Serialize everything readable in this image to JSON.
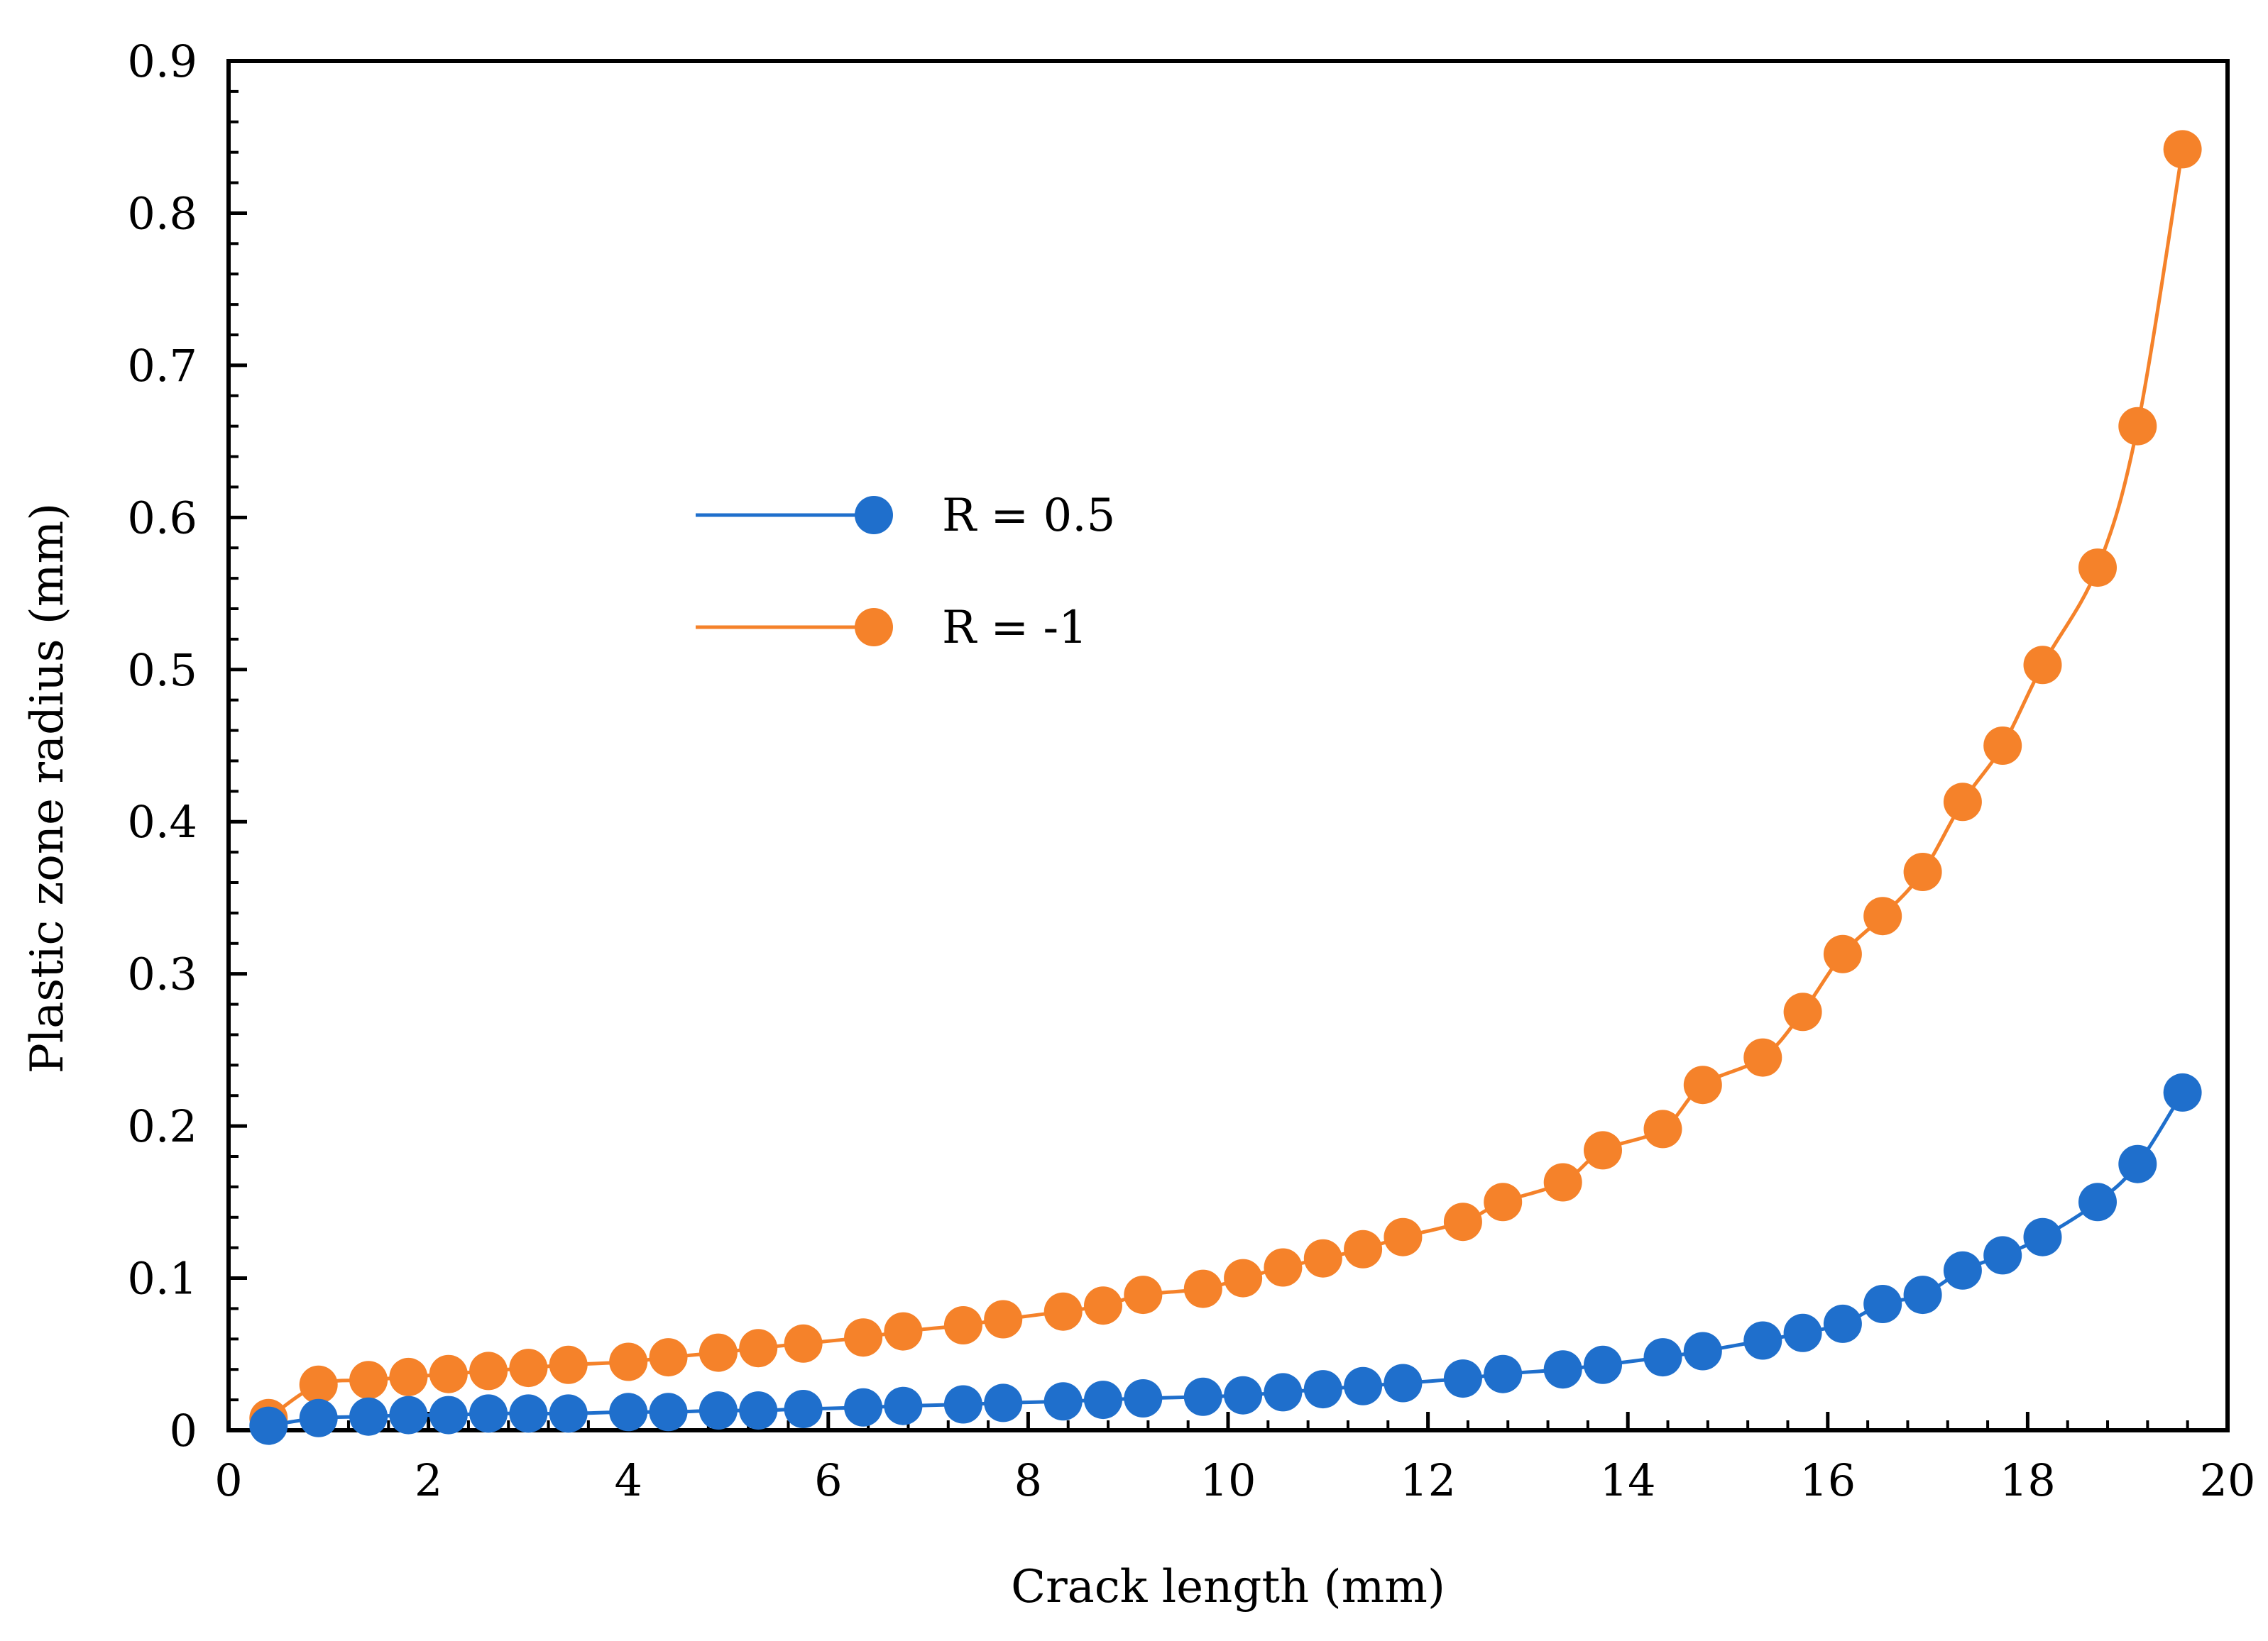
{
  "chart_data": {
    "type": "line",
    "title": "",
    "xlabel": "Crack length (mm)",
    "ylabel": "Plastic zone radius (mm)",
    "xlim": [
      0,
      20
    ],
    "ylim": [
      0,
      0.9
    ],
    "xticks": [
      0,
      2,
      4,
      6,
      8,
      10,
      12,
      14,
      16,
      18,
      20
    ],
    "yticks": [
      0,
      0.1,
      0.2,
      0.3,
      0.4,
      0.5,
      0.6,
      0.7,
      0.8,
      0.9
    ],
    "xtick_labels": [
      "0",
      "2",
      "4",
      "6",
      "8",
      "10",
      "12",
      "14",
      "16",
      "18",
      "20"
    ],
    "ytick_labels": [
      "0",
      "0.1",
      "0.2",
      "0.3",
      "0.4",
      "0.5",
      "0.6",
      "0.7",
      "0.8",
      "0.9"
    ],
    "grid": false,
    "legend": "center-left",
    "series": [
      {
        "name": "R = 0.5",
        "color": "#1f6fcc",
        "x": [
          0.4,
          0.9,
          1.4,
          1.8,
          2.2,
          2.6,
          3.0,
          3.4,
          4.0,
          4.4,
          4.9,
          5.3,
          5.75,
          6.35,
          6.75,
          7.35,
          7.75,
          8.35,
          8.75,
          9.15,
          9.75,
          10.15,
          10.55,
          10.95,
          11.35,
          11.75,
          12.35,
          12.75,
          13.35,
          13.75,
          14.35,
          14.75,
          15.35,
          15.75,
          16.15,
          16.55,
          16.95,
          17.35,
          17.75,
          18.15,
          18.7,
          19.1,
          19.55
        ],
        "y": [
          0.003,
          0.008,
          0.009,
          0.01,
          0.01,
          0.011,
          0.011,
          0.011,
          0.012,
          0.012,
          0.013,
          0.013,
          0.014,
          0.015,
          0.016,
          0.017,
          0.018,
          0.019,
          0.02,
          0.021,
          0.022,
          0.023,
          0.025,
          0.027,
          0.029,
          0.031,
          0.034,
          0.037,
          0.04,
          0.043,
          0.048,
          0.052,
          0.059,
          0.064,
          0.07,
          0.083,
          0.089,
          0.105,
          0.115,
          0.127,
          0.15,
          0.175,
          0.222
        ]
      },
      {
        "name": "R = -1",
        "color": "#f5822a",
        "x": [
          0.4,
          0.9,
          1.4,
          1.8,
          2.2,
          2.6,
          3.0,
          3.4,
          4.0,
          4.4,
          4.9,
          5.3,
          5.75,
          6.35,
          6.75,
          7.35,
          7.75,
          8.35,
          8.75,
          9.15,
          9.75,
          10.15,
          10.55,
          10.95,
          11.35,
          11.75,
          12.35,
          12.75,
          13.35,
          13.75,
          14.35,
          14.75,
          15.35,
          15.75,
          16.15,
          16.55,
          16.95,
          17.35,
          17.75,
          18.15,
          18.7,
          19.1,
          19.55
        ],
        "y": [
          0.008,
          0.03,
          0.033,
          0.035,
          0.037,
          0.039,
          0.041,
          0.043,
          0.045,
          0.048,
          0.051,
          0.054,
          0.057,
          0.061,
          0.065,
          0.069,
          0.073,
          0.078,
          0.082,
          0.089,
          0.093,
          0.1,
          0.107,
          0.113,
          0.119,
          0.127,
          0.137,
          0.15,
          0.163,
          0.184,
          0.198,
          0.227,
          0.245,
          0.275,
          0.313,
          0.338,
          0.367,
          0.413,
          0.45,
          0.503,
          0.567,
          0.66,
          0.842
        ]
      }
    ]
  }
}
